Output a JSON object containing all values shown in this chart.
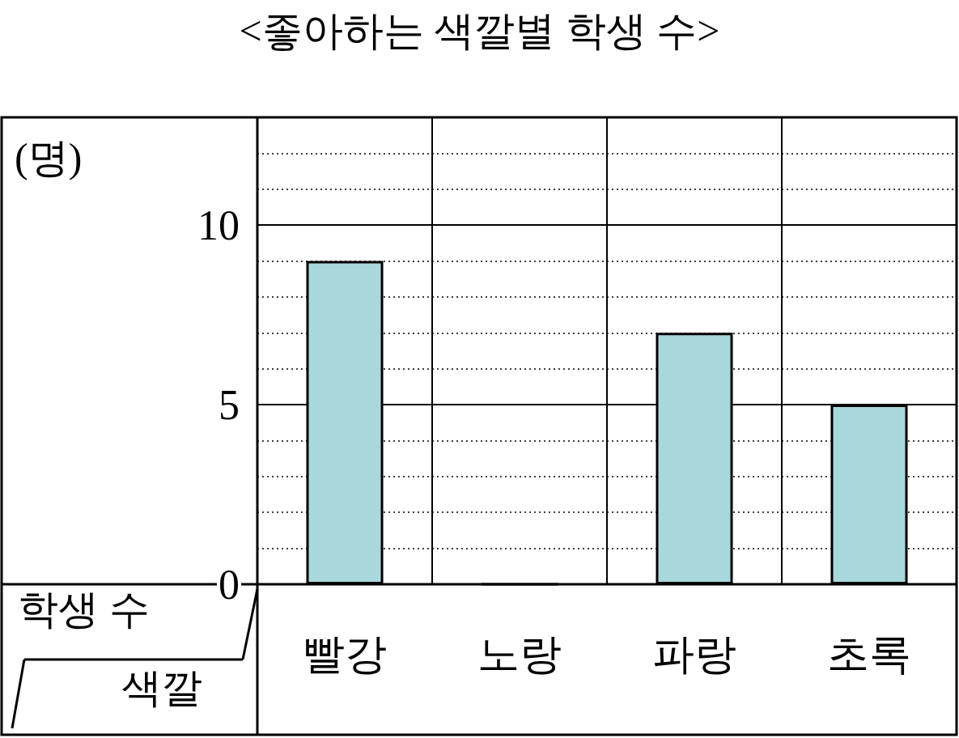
{
  "chart_data": {
    "type": "bar",
    "title": "<좋아하는 색깔별 학생 수>",
    "ylabel": "(명)",
    "xlabel": "색깔",
    "annotations": [
      "학생 수"
    ],
    "categories": [
      "빨강",
      "노랑",
      "파랑",
      "초록"
    ],
    "values": [
      9,
      0,
      7,
      5
    ],
    "color": "#a8d8dc",
    "ylim": [
      0,
      13
    ],
    "yticks": [
      0,
      5,
      10
    ],
    "grid": true
  }
}
